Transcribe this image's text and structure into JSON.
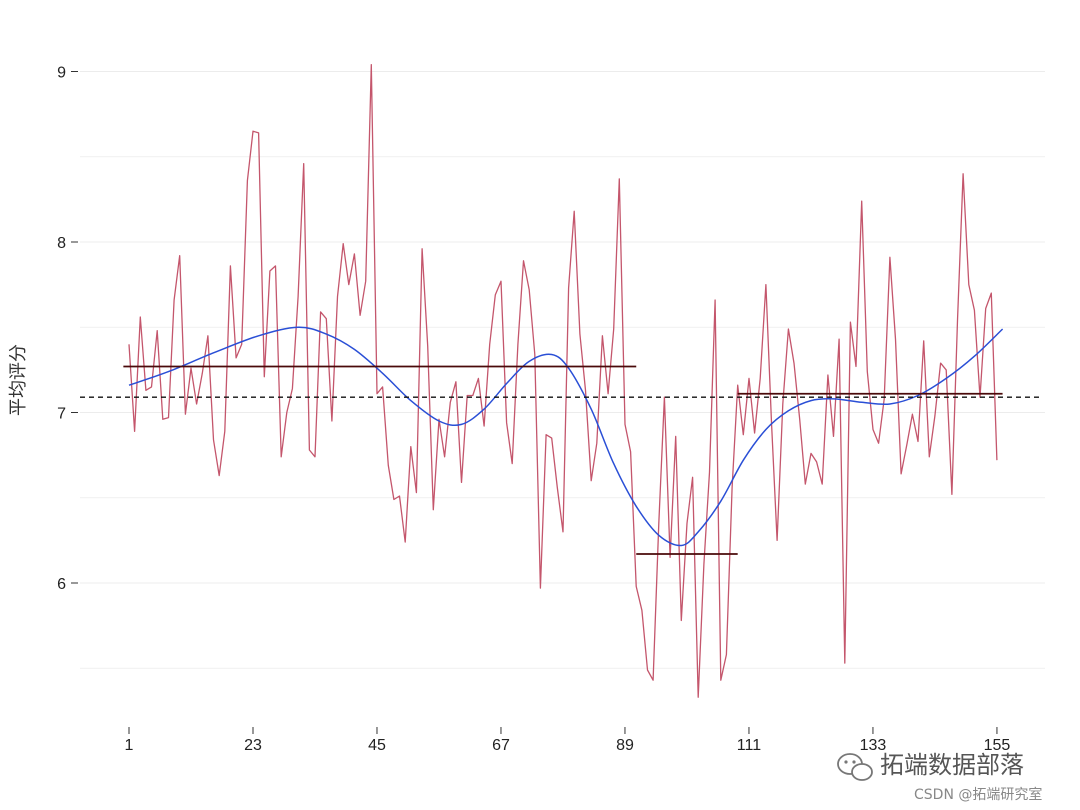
{
  "chart_data": {
    "type": "line",
    "title": "",
    "xlabel": "",
    "ylabel": "平均评分",
    "xlim": [
      1,
      156
    ],
    "ylim": [
      5.2,
      9.4
    ],
    "grid": "horizontal",
    "x_ticks": [
      1,
      23,
      45,
      67,
      89,
      111,
      133,
      155
    ],
    "y_ticks": [
      6,
      7,
      8,
      9
    ],
    "colors": {
      "series": "#c4566c",
      "smooth": "#2a4fd6",
      "segment_mean": "#4a0a0a",
      "overall_mean": "#111111",
      "grid": "#ececec"
    },
    "series": [
      {
        "values": [
          7.4,
          6.89,
          7.56,
          7.13,
          7.15,
          7.48,
          6.96,
          6.97,
          7.66,
          7.92,
          6.99,
          7.26,
          7.05,
          7.23,
          7.45,
          6.84,
          6.63,
          6.89,
          7.86,
          7.32,
          7.4,
          8.36,
          8.65,
          8.64,
          7.21,
          7.83,
          7.86,
          6.74,
          7.0,
          7.14,
          7.68,
          8.46,
          6.78,
          6.74,
          7.59,
          7.55,
          6.95,
          7.68,
          7.99,
          7.75,
          7.93,
          7.57,
          7.77,
          9.04,
          7.11,
          7.15,
          6.69,
          6.49,
          6.51,
          6.24,
          6.8,
          6.53,
          7.96,
          7.39,
          6.43,
          6.96,
          6.74,
          7.06,
          7.18,
          6.59,
          7.1,
          7.1,
          7.2,
          6.92,
          7.4,
          7.69,
          7.77,
          6.94,
          6.7,
          7.4,
          7.89,
          7.72,
          7.34,
          5.97,
          6.87,
          6.85,
          6.56,
          6.3,
          7.73,
          8.18,
          7.46,
          7.13,
          6.6,
          6.82,
          7.45,
          7.11,
          7.49,
          8.37,
          6.93,
          6.77,
          5.98,
          5.84,
          5.49,
          5.43,
          6.35,
          7.09,
          6.15,
          6.86,
          5.78,
          6.35,
          6.62,
          5.33,
          6.11,
          6.65,
          7.66,
          5.43,
          5.58,
          6.56,
          7.16,
          6.87,
          7.2,
          6.88,
          7.2,
          7.75,
          6.94,
          6.25,
          7.05,
          7.49,
          7.29,
          6.96,
          6.58,
          6.76,
          6.71,
          6.58,
          7.22,
          6.86,
          7.43,
          5.53,
          7.53,
          7.27,
          8.24,
          7.24,
          6.9,
          6.82,
          7.08,
          7.91,
          7.43,
          6.64,
          6.81,
          6.99,
          6.83,
          7.42,
          6.74,
          6.98,
          7.29,
          7.25,
          6.52,
          7.54,
          8.4,
          7.75,
          7.6,
          7.09,
          7.61,
          7.7,
          6.72
        ]
      }
    ],
    "smooth_line": {
      "x": [
        1,
        8,
        16,
        24,
        31,
        36,
        41,
        46,
        51,
        56,
        60,
        64,
        68,
        72,
        76,
        79,
        83,
        87,
        91,
        95,
        99,
        102,
        106,
        110,
        114,
        118,
        122,
        126,
        131,
        136,
        141,
        146,
        151,
        156
      ],
      "values": [
        7.16,
        7.24,
        7.35,
        7.45,
        7.5,
        7.46,
        7.37,
        7.23,
        7.07,
        6.95,
        6.93,
        7.02,
        7.17,
        7.3,
        7.34,
        7.26,
        7.02,
        6.7,
        6.45,
        6.28,
        6.22,
        6.3,
        6.48,
        6.72,
        6.9,
        7.01,
        7.07,
        7.08,
        7.06,
        7.05,
        7.1,
        7.2,
        7.33,
        7.49
      ]
    },
    "segment_means": [
      {
        "x_start": 0,
        "x_end": 91,
        "value": 7.27
      },
      {
        "x_start": 91,
        "x_end": 109,
        "value": 6.17
      },
      {
        "x_start": 109,
        "x_end": 156,
        "value": 7.11
      }
    ],
    "overall_mean": 7.09,
    "watermark": {
      "brand": "拓端数据部落",
      "credit": "CSDN @拓端研究室"
    }
  }
}
